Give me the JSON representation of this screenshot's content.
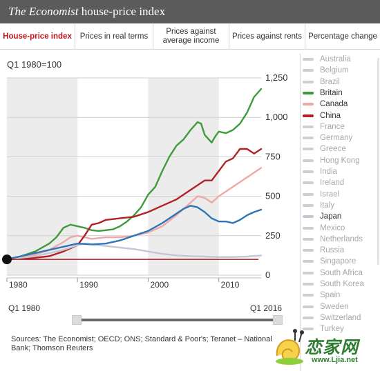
{
  "header": {
    "title_brand": "The Economist",
    "title_rest": " house-price index",
    "background": "#5b5b5b"
  },
  "tabs": [
    {
      "label": "House-price index",
      "active": true
    },
    {
      "label": "Prices in real terms",
      "active": false
    },
    {
      "label": "Prices against average income",
      "active": false
    },
    {
      "label": "Prices against rents",
      "active": false
    },
    {
      "label": "Percentage change",
      "active": false
    }
  ],
  "unit_label": "Q1 1980=100",
  "legend": [
    {
      "label": "Australia",
      "active": false
    },
    {
      "label": "Belgium",
      "active": false
    },
    {
      "label": "Brazil",
      "active": false
    },
    {
      "label": "Britain",
      "active": true,
      "color": "#3f9a3c"
    },
    {
      "label": "Canada",
      "active": true,
      "color": "#f0a7a7"
    },
    {
      "label": "China",
      "active": true,
      "color": "#b22126"
    },
    {
      "label": "France",
      "active": false
    },
    {
      "label": "Germany",
      "active": false
    },
    {
      "label": "Greece",
      "active": false
    },
    {
      "label": "Hong Kong",
      "active": false
    },
    {
      "label": "India",
      "active": false
    },
    {
      "label": "Ireland",
      "active": false
    },
    {
      "label": "Israel",
      "active": false
    },
    {
      "label": "Italy",
      "active": false
    },
    {
      "label": "Japan",
      "active": true,
      "color": "#c6c6d6"
    },
    {
      "label": "Mexico",
      "active": false
    },
    {
      "label": "Netherlands",
      "active": false
    },
    {
      "label": "Russia",
      "active": false
    },
    {
      "label": "Singapore",
      "active": false
    },
    {
      "label": "South Africa",
      "active": false
    },
    {
      "label": "South Korea",
      "active": false
    },
    {
      "label": "Spain",
      "active": false
    },
    {
      "label": "Sweden",
      "active": false
    },
    {
      "label": "Switzerland",
      "active": false
    },
    {
      "label": "Turkey",
      "active": false
    }
  ],
  "colors": {
    "inactive_text": "#a8a8a8",
    "inactive_swatch": "#cfcfcf",
    "active_text": "#333333",
    "accent": "#c0161d"
  },
  "slider": {
    "start_label": "Q1 1980",
    "end_label": "Q1 2016",
    "start_value": "Q1 1980",
    "end_value": "Q1 2016"
  },
  "sources": "Sources: The Economist; OECD; ONS; Standard & Poor's; Teranet – National Bank; Thomson Reuters",
  "watermark": {
    "text": "恋家网",
    "url": "www.Ljia.net"
  },
  "chart_data": {
    "type": "line",
    "ylabel": "Q1 1980=100",
    "xlim": [
      1980,
      2016
    ],
    "ylim": [
      0,
      1250
    ],
    "yticks": [
      0,
      250,
      500,
      750,
      1000,
      1250
    ],
    "ytick_labels": [
      "0",
      "250",
      "500",
      "750",
      "1,000",
      "1,250"
    ],
    "xticks": [
      1980,
      1990,
      2000,
      2010
    ],
    "shaded_decades": [
      [
        1980,
        1990
      ],
      [
        2000,
        2010
      ]
    ],
    "baseline": 100,
    "series": [
      {
        "name": "Britain",
        "color": "#3f9a3c",
        "x": [
          1980,
          1982,
          1984,
          1986,
          1987,
          1988,
          1989,
          1990,
          1991,
          1992,
          1993,
          1994,
          1995,
          1996,
          1997,
          1998,
          1999,
          2000,
          2001,
          2002,
          2003,
          2004,
          2005,
          2006,
          2007,
          2007.5,
          2008,
          2009,
          2009.5,
          2010,
          2011,
          2012,
          2013,
          2014,
          2015,
          2016
        ],
        "y": [
          100,
          120,
          150,
          200,
          240,
          300,
          320,
          310,
          300,
          285,
          280,
          285,
          290,
          310,
          340,
          380,
          430,
          510,
          560,
          660,
          750,
          820,
          860,
          920,
          970,
          960,
          890,
          840,
          880,
          910,
          900,
          920,
          960,
          1030,
          1130,
          1180
        ]
      },
      {
        "name": "Canada",
        "color": "#f0a7a7",
        "x": [
          1980,
          1982,
          1984,
          1986,
          1988,
          1989,
          1990,
          1992,
          1994,
          1996,
          1998,
          2000,
          2002,
          2004,
          2006,
          2007,
          2008,
          2009,
          2010,
          2012,
          2014,
          2016
        ],
        "y": [
          100,
          110,
          130,
          160,
          210,
          240,
          250,
          230,
          240,
          240,
          250,
          270,
          310,
          380,
          460,
          500,
          490,
          460,
          500,
          560,
          620,
          680
        ]
      },
      {
        "name": "China",
        "color": "#b22126",
        "x": [
          1980,
          1982,
          1984,
          1986,
          1988,
          1990,
          1991,
          1992,
          1993,
          1994,
          1996,
          1998,
          2000,
          2002,
          2004,
          2006,
          2008,
          2009,
          2010,
          2011,
          2012,
          2013,
          2014,
          2015,
          2016
        ],
        "y": [
          100,
          105,
          110,
          120,
          150,
          190,
          250,
          320,
          330,
          350,
          360,
          370,
          400,
          440,
          480,
          540,
          600,
          600,
          660,
          720,
          740,
          800,
          800,
          770,
          800
        ]
      },
      {
        "name": "Japan",
        "color": "#c6c6d6",
        "x": [
          1980,
          1984,
          1988,
          1990,
          1991,
          1992,
          1994,
          1996,
          1998,
          2000,
          2002,
          2004,
          2006,
          2008,
          2010,
          2012,
          2014,
          2016
        ],
        "y": [
          100,
          120,
          160,
          190,
          200,
          195,
          185,
          175,
          165,
          150,
          135,
          125,
          120,
          118,
          115,
          115,
          118,
          125
        ]
      },
      {
        "name": "",
        "color": "#2e75b6",
        "x": [
          1980,
          1982,
          1984,
          1986,
          1988,
          1990,
          1992,
          1994,
          1996,
          1998,
          2000,
          2002,
          2003,
          2004,
          2005,
          2006,
          2007,
          2008,
          2009,
          2010,
          2011,
          2012,
          2013,
          2014,
          2015,
          2016
        ],
        "y": [
          100,
          120,
          140,
          160,
          180,
          200,
          195,
          200,
          220,
          250,
          280,
          330,
          360,
          390,
          420,
          440,
          430,
          400,
          360,
          340,
          340,
          330,
          350,
          380,
          400,
          415
        ]
      }
    ]
  }
}
